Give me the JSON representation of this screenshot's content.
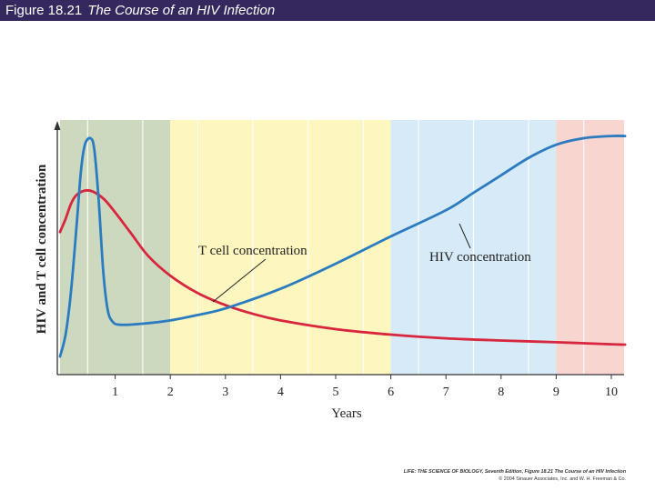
{
  "header": {
    "figure_number": "Figure 18.21",
    "caption": "The Course of an HIV Infection"
  },
  "chart_data": {
    "type": "line",
    "xlabel": "Years",
    "ylabel": "HIV and T cell concentration",
    "xlim": [
      0,
      10.25
    ],
    "ylim": [
      0,
      100
    ],
    "x_ticks": [
      1,
      2,
      3,
      4,
      5,
      6,
      7,
      8,
      9,
      10
    ],
    "phases": [
      {
        "from": 0,
        "to": 2,
        "color": "#cdd9bf"
      },
      {
        "from": 2,
        "to": 6,
        "color": "#fdf6bf"
      },
      {
        "from": 6,
        "to": 9,
        "color": "#d6eaf8"
      },
      {
        "from": 9,
        "to": 10.25,
        "color": "#f9d5cf"
      }
    ],
    "series": [
      {
        "name": "T cell concentration",
        "color": "#d7263d",
        "x": [
          0,
          0.1,
          0.2,
          0.3,
          0.45,
          0.6,
          0.8,
          1.0,
          1.3,
          1.6,
          2.0,
          2.5,
          3.0,
          3.5,
          4.0,
          5.0,
          6.0,
          7.0,
          8.0,
          9.0,
          10.0,
          10.25
        ],
        "y": [
          57,
          63,
          70,
          74,
          76,
          75.5,
          72,
          66,
          56,
          46,
          37,
          29,
          23.5,
          19.5,
          16.5,
          12.5,
          10,
          8.3,
          7.3,
          6.5,
          5.6,
          5.4
        ]
      },
      {
        "name": "HIV concentration",
        "color": "#2b7bc0",
        "x": [
          0,
          0.1,
          0.2,
          0.3,
          0.38,
          0.45,
          0.55,
          0.62,
          0.7,
          0.78,
          0.86,
          0.95,
          1.1,
          1.5,
          2.0,
          2.5,
          3.0,
          4.0,
          5.0,
          6.0,
          7.0,
          7.5,
          8.0,
          8.5,
          9.0,
          9.5,
          10.0,
          10.25
        ],
        "y": [
          0,
          10,
          30,
          60,
          85,
          97,
          100,
          95,
          72,
          40,
          22,
          16,
          14.5,
          15,
          16.5,
          19,
          22,
          31,
          42.5,
          55,
          67,
          75,
          83,
          91,
          97,
          100,
          101,
          101
        ]
      }
    ],
    "annotations": [
      {
        "text": "T cell concentration",
        "series": 0
      },
      {
        "text": "HIV concentration",
        "series": 1
      }
    ]
  },
  "credit": {
    "line1": "LIFE: THE SCIENCE OF BIOLOGY, Seventh Edition, Figure 18.21 The Course of an HIV Infection",
    "line2": "© 2004 Sinauer Associates, Inc. and W. H. Freeman & Co."
  }
}
